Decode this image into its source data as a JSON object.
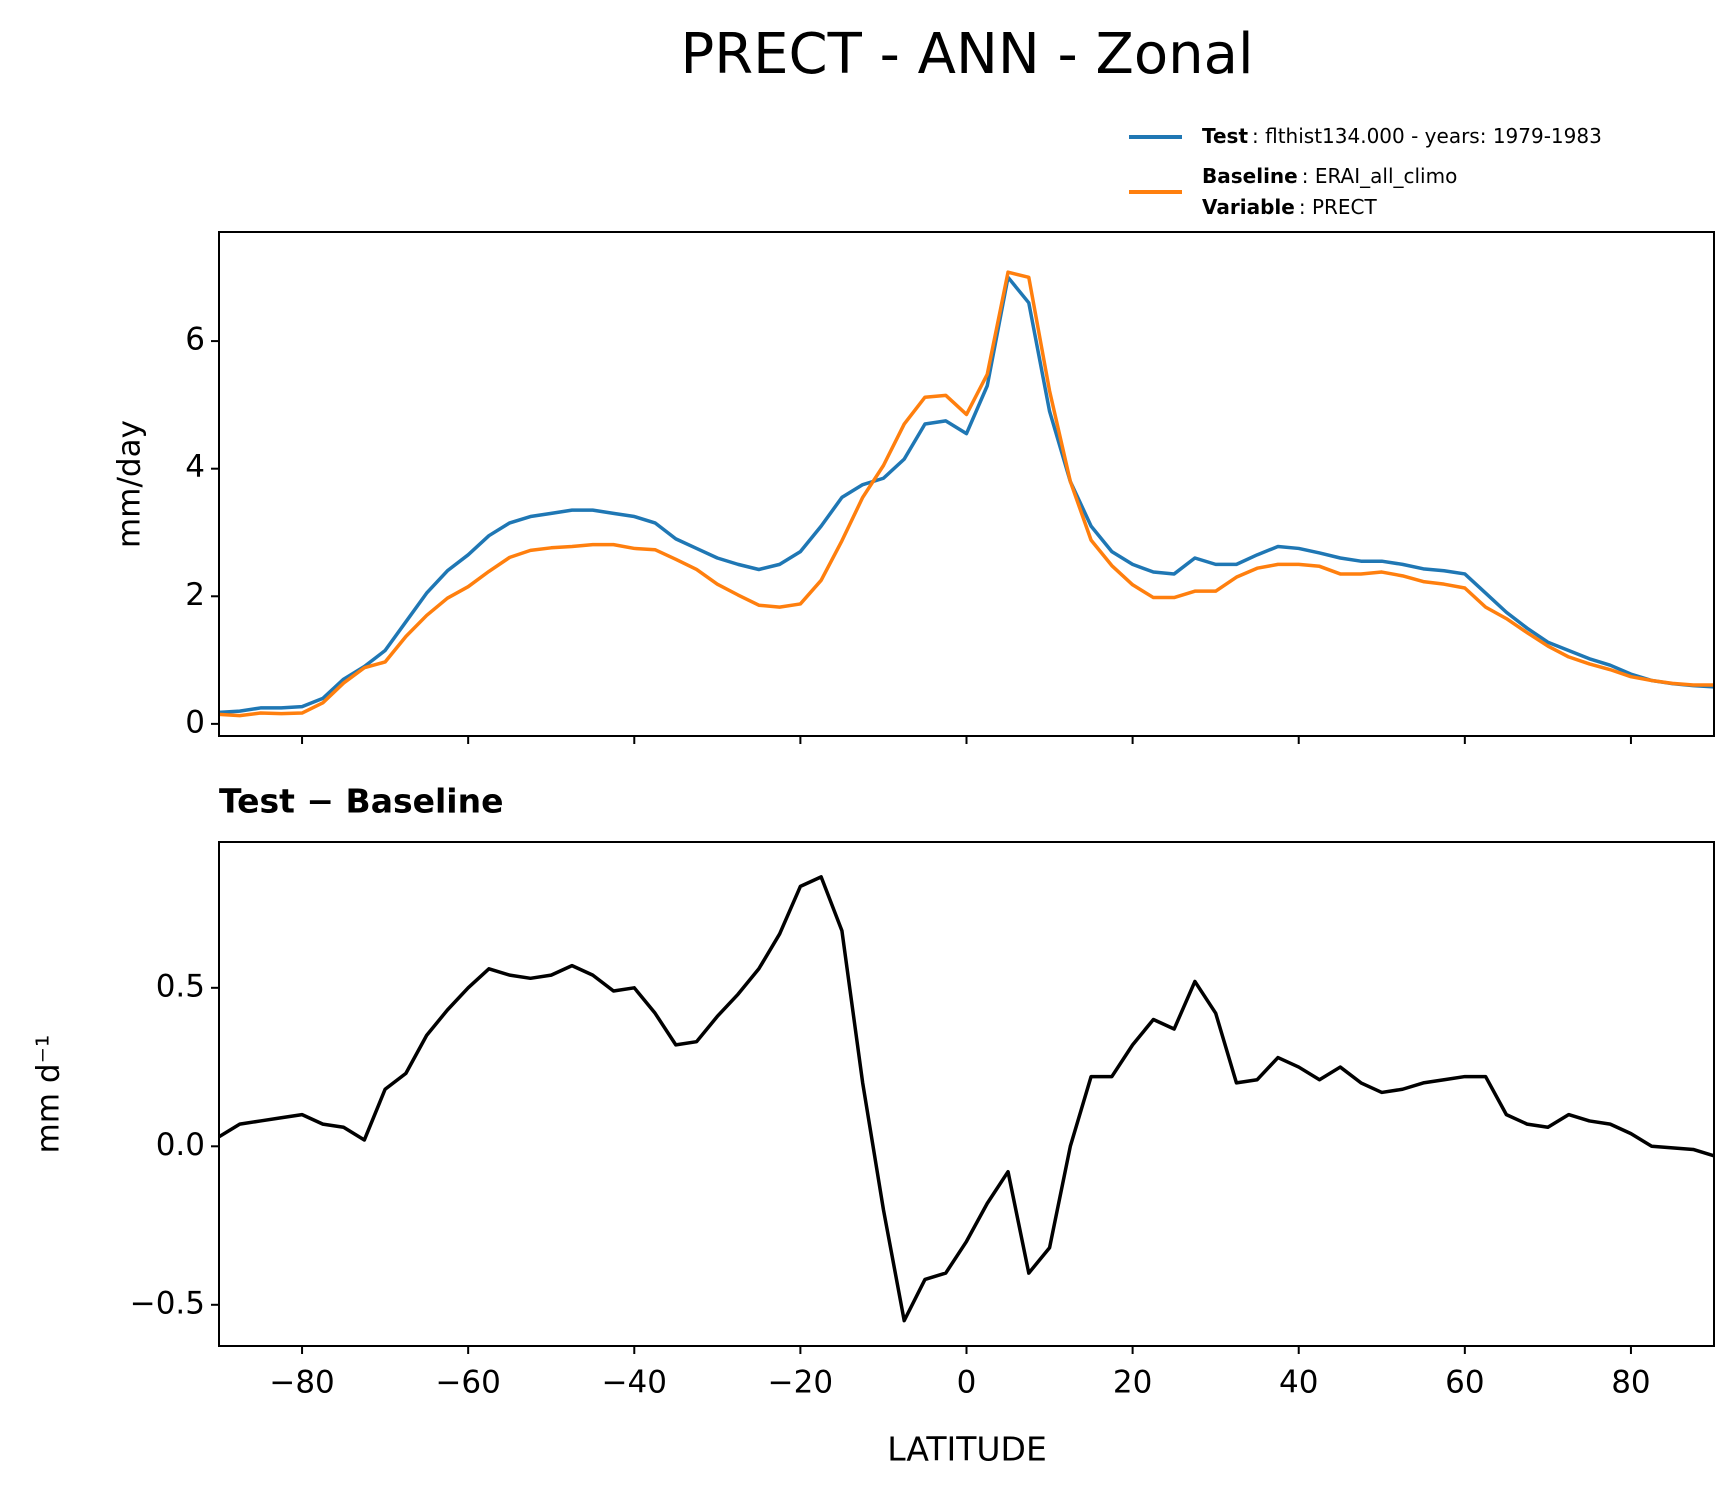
{
  "figure_title": "PRECT - ANN - Zonal",
  "chart_data": [
    {
      "type": "line",
      "ylabel": "mm/day",
      "x": [
        -90,
        -87.5,
        -85,
        -82.5,
        -80,
        -77.5,
        -75,
        -72.5,
        -70,
        -67.5,
        -65,
        -62.5,
        -60,
        -57.5,
        -55,
        -52.5,
        -50,
        -47.5,
        -45,
        -42.5,
        -40,
        -37.5,
        -35,
        -32.5,
        -30,
        -27.5,
        -25,
        -22.5,
        -20,
        -17.5,
        -15,
        -12.5,
        -10,
        -7.5,
        -5,
        -2.5,
        0,
        2.5,
        5,
        7.5,
        10,
        12.5,
        15,
        17.5,
        20,
        22.5,
        25,
        27.5,
        30,
        32.5,
        35,
        37.5,
        40,
        42.5,
        45,
        47.5,
        50,
        52.5,
        55,
        57.5,
        60,
        62.5,
        65,
        67.5,
        70,
        72.5,
        75,
        77.5,
        80,
        82.5,
        85,
        87.5,
        90
      ],
      "series": [
        {
          "name": "Test",
          "detail": ": flthist134.000 - years: 1979-1983",
          "color": "#1f77b4",
          "values": [
            0.18,
            0.2,
            0.25,
            0.25,
            0.27,
            0.4,
            0.7,
            0.9,
            1.15,
            1.6,
            2.05,
            2.4,
            2.65,
            2.95,
            3.15,
            3.25,
            3.3,
            3.35,
            3.35,
            3.3,
            3.25,
            3.15,
            2.9,
            2.75,
            2.6,
            2.5,
            2.42,
            2.5,
            2.7,
            3.1,
            3.55,
            3.75,
            3.85,
            4.15,
            4.7,
            4.75,
            4.55,
            5.3,
            7.0,
            6.6,
            4.9,
            3.8,
            3.1,
            2.7,
            2.5,
            2.38,
            2.35,
            2.6,
            2.5,
            2.5,
            2.65,
            2.78,
            2.75,
            2.68,
            2.6,
            2.55,
            2.55,
            2.5,
            2.43,
            2.4,
            2.35,
            2.05,
            1.75,
            1.5,
            1.28,
            1.15,
            1.02,
            0.92,
            0.78,
            0.68,
            0.63,
            0.6,
            0.58
          ]
        },
        {
          "name": "Baseline",
          "detail": ": ERAI_all_climo",
          "color": "#ff7f0e",
          "values": [
            0.15,
            0.13,
            0.17,
            0.16,
            0.17,
            0.33,
            0.64,
            0.88,
            0.97,
            1.37,
            1.7,
            1.97,
            2.15,
            2.39,
            2.61,
            2.72,
            2.76,
            2.78,
            2.81,
            2.81,
            2.75,
            2.73,
            2.58,
            2.42,
            2.19,
            2.02,
            1.86,
            1.83,
            1.88,
            2.25,
            2.87,
            3.55,
            4.05,
            4.7,
            5.12,
            5.15,
            4.85,
            5.48,
            7.08,
            7.0,
            5.22,
            3.8,
            2.88,
            2.48,
            2.18,
            1.98,
            1.98,
            2.08,
            2.08,
            2.3,
            2.44,
            2.5,
            2.5,
            2.47,
            2.35,
            2.35,
            2.38,
            2.32,
            2.23,
            2.19,
            2.13,
            1.83,
            1.65,
            1.43,
            1.22,
            1.05,
            0.94,
            0.85,
            0.74,
            0.68,
            0.635,
            0.61,
            0.61
          ]
        }
      ],
      "legend_extra": {
        "name": "Variable",
        "detail": ": PRECT"
      },
      "xlim": [
        -90,
        90
      ],
      "xticks": [
        -80,
        -60,
        -40,
        -20,
        0,
        20,
        40,
        60,
        80
      ],
      "ylim": [
        -0.19,
        7.71
      ],
      "yticks": [
        0,
        2,
        4,
        6
      ]
    },
    {
      "type": "line",
      "title": "Test − Baseline",
      "ylabel": "mm d⁻¹",
      "xlabel": "LATITUDE",
      "x": [
        -90,
        -87.5,
        -85,
        -82.5,
        -80,
        -77.5,
        -75,
        -72.5,
        -70,
        -67.5,
        -65,
        -62.5,
        -60,
        -57.5,
        -55,
        -52.5,
        -50,
        -47.5,
        -45,
        -42.5,
        -40,
        -37.5,
        -35,
        -32.5,
        -30,
        -27.5,
        -25,
        -22.5,
        -20,
        -17.5,
        -15,
        -12.5,
        -10,
        -7.5,
        -5,
        -2.5,
        0,
        2.5,
        5,
        7.5,
        10,
        12.5,
        15,
        17.5,
        20,
        22.5,
        25,
        27.5,
        30,
        32.5,
        35,
        37.5,
        40,
        42.5,
        45,
        47.5,
        50,
        52.5,
        55,
        57.5,
        60,
        62.5,
        65,
        67.5,
        70,
        72.5,
        75,
        77.5,
        80,
        82.5,
        85,
        87.5,
        90
      ],
      "color": "#000000",
      "values": [
        0.03,
        0.07,
        0.08,
        0.09,
        0.1,
        0.07,
        0.06,
        0.02,
        0.18,
        0.23,
        0.35,
        0.43,
        0.5,
        0.56,
        0.54,
        0.53,
        0.54,
        0.57,
        0.54,
        0.49,
        0.5,
        0.42,
        0.32,
        0.33,
        0.41,
        0.48,
        0.56,
        0.67,
        0.82,
        0.85,
        0.68,
        0.2,
        -0.2,
        -0.55,
        -0.42,
        -0.4,
        -0.3,
        -0.18,
        -0.08,
        -0.4,
        -0.32,
        0.0,
        0.22,
        0.22,
        0.32,
        0.4,
        0.37,
        0.52,
        0.42,
        0.2,
        0.21,
        0.28,
        0.25,
        0.21,
        0.25,
        0.2,
        0.17,
        0.18,
        0.2,
        0.21,
        0.22,
        0.22,
        0.1,
        0.07,
        0.06,
        0.1,
        0.08,
        0.07,
        0.04,
        0.0,
        -0.005,
        -0.01,
        -0.03
      ],
      "xlim": [
        -90,
        90
      ],
      "xticks": [
        {
          "value": -80,
          "label": "−80"
        },
        {
          "value": -60,
          "label": "−60"
        },
        {
          "value": -40,
          "label": "−40"
        },
        {
          "value": -20,
          "label": "−20"
        },
        0,
        20,
        40,
        60,
        80
      ],
      "ylim": [
        -0.63,
        0.96
      ],
      "yticks": [
        {
          "value": -0.5,
          "label": "−0.5"
        },
        {
          "value": 0,
          "label": "0.0"
        },
        0.5
      ]
    }
  ]
}
